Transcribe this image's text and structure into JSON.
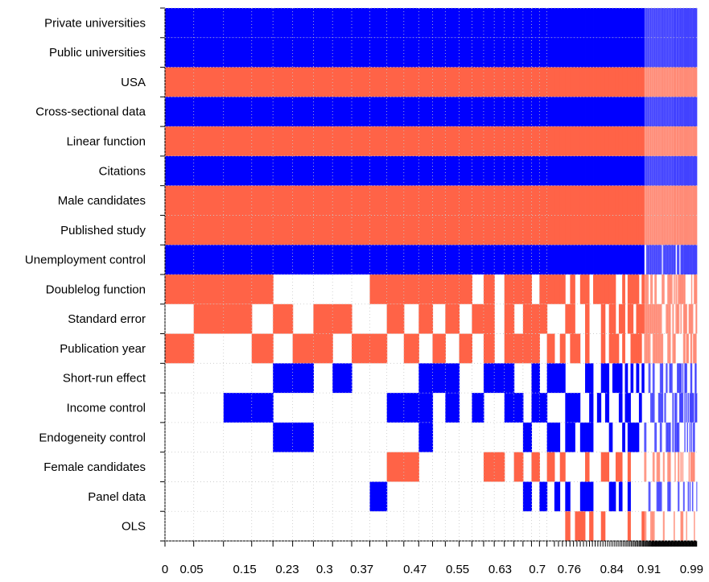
{
  "chart_data": {
    "type": "heatmap",
    "description_free": true,
    "colors": {
      "positive": "#0000ff",
      "negative": "#ff6347",
      "empty": "#ffffff"
    },
    "rows": [
      "Private universities",
      "Public universities",
      "USA",
      "Cross-sectional data",
      "Linear function",
      "Citations",
      "Male candidates",
      "Published study",
      "Unemployment control",
      "Doublelog function",
      "Standard error",
      "Publication year",
      "Short-run effect",
      "Income control",
      "Endogeneity control",
      "Female candidates",
      "Panel data",
      "OLS"
    ],
    "x_ticks": [
      "0",
      "0.05",
      "0.15",
      "0.23",
      "0.3",
      "0.37",
      "0.47",
      "0.55",
      "0.63",
      "0.7",
      "0.76",
      "0.84",
      "0.91",
      "0.99"
    ],
    "x_range": [
      0,
      1
    ],
    "models": [
      {
        "w": 0.054,
        "v": [
          "B",
          "B",
          "R",
          "B",
          "R",
          "B",
          "R",
          "R",
          "B",
          "R",
          "",
          "R",
          "",
          "",
          "",
          "",
          "",
          ""
        ]
      },
      {
        "w": 0.056,
        "v": [
          "B",
          "B",
          "R",
          "B",
          "R",
          "B",
          "R",
          "R",
          "B",
          "R",
          "R",
          "",
          "",
          "",
          "",
          "",
          "",
          ""
        ]
      },
      {
        "w": 0.053,
        "v": [
          "B",
          "B",
          "R",
          "B",
          "R",
          "B",
          "R",
          "R",
          "B",
          "R",
          "R",
          "",
          "",
          "B",
          "",
          "",
          "",
          ""
        ]
      },
      {
        "w": 0.04,
        "v": [
          "B",
          "B",
          "R",
          "B",
          "R",
          "B",
          "R",
          "R",
          "B",
          "R",
          "",
          "R",
          "",
          "B",
          "",
          "",
          "",
          ""
        ]
      },
      {
        "w": 0.037,
        "v": [
          "B",
          "B",
          "R",
          "B",
          "R",
          "B",
          "R",
          "R",
          "B",
          "",
          "R",
          "",
          "B",
          "",
          "B",
          "",
          "",
          ""
        ]
      },
      {
        "w": 0.039,
        "v": [
          "B",
          "B",
          "R",
          "B",
          "R",
          "B",
          "R",
          "R",
          "B",
          "",
          "",
          "R",
          "B",
          "",
          "B",
          "",
          "",
          ""
        ]
      },
      {
        "w": 0.036,
        "v": [
          "B",
          "B",
          "R",
          "B",
          "R",
          "B",
          "R",
          "R",
          "B",
          "",
          "R",
          "R",
          "",
          "",
          "",
          "",
          "",
          ""
        ]
      },
      {
        "w": 0.036,
        "v": [
          "B",
          "B",
          "R",
          "B",
          "R",
          "B",
          "R",
          "R",
          "B",
          "",
          "R",
          "",
          "B",
          "",
          "",
          "",
          "",
          ""
        ]
      },
      {
        "w": 0.034,
        "v": [
          "B",
          "B",
          "R",
          "B",
          "R",
          "B",
          "R",
          "R",
          "B",
          "",
          "",
          "R",
          "",
          "",
          "",
          "",
          "",
          ""
        ]
      },
      {
        "w": 0.032,
        "v": [
          "B",
          "B",
          "R",
          "B",
          "R",
          "B",
          "R",
          "R",
          "B",
          "R",
          "",
          "R",
          "",
          "",
          "",
          "",
          "B",
          ""
        ]
      },
      {
        "w": 0.032,
        "v": [
          "B",
          "B",
          "R",
          "B",
          "R",
          "B",
          "R",
          "R",
          "B",
          "R",
          "R",
          "",
          "",
          "B",
          "",
          "R",
          "",
          ""
        ]
      },
      {
        "w": 0.028,
        "v": [
          "B",
          "B",
          "R",
          "B",
          "R",
          "B",
          "R",
          "R",
          "B",
          "R",
          "",
          "R",
          "",
          "B",
          "",
          "R",
          "",
          ""
        ]
      },
      {
        "w": 0.026,
        "v": [
          "B",
          "B",
          "R",
          "B",
          "R",
          "B",
          "R",
          "R",
          "B",
          "R",
          "R",
          "",
          "B",
          "B",
          "B",
          "",
          "",
          ""
        ]
      },
      {
        "w": 0.024,
        "v": [
          "B",
          "B",
          "R",
          "B",
          "R",
          "B",
          "R",
          "R",
          "B",
          "R",
          "",
          "R",
          "B",
          "",
          "",
          "",
          "",
          ""
        ]
      },
      {
        "w": 0.026,
        "v": [
          "B",
          "B",
          "R",
          "B",
          "R",
          "B",
          "R",
          "R",
          "B",
          "R",
          "R",
          "",
          "B",
          "B",
          "",
          "",
          "",
          ""
        ]
      },
      {
        "w": 0.024,
        "v": [
          "B",
          "B",
          "R",
          "B",
          "R",
          "B",
          "R",
          "R",
          "B",
          "R",
          "",
          "R",
          "",
          "",
          "",
          "",
          "",
          ""
        ]
      },
      {
        "w": 0.022,
        "v": [
          "B",
          "B",
          "R",
          "B",
          "R",
          "B",
          "R",
          "R",
          "B",
          "",
          "R",
          "",
          "",
          "B",
          "",
          "",
          "",
          ""
        ]
      },
      {
        "w": 0.02,
        "v": [
          "B",
          "B",
          "R",
          "B",
          "R",
          "B",
          "R",
          "R",
          "B",
          "R",
          "R",
          "R",
          "B",
          "",
          "",
          "R",
          "",
          ""
        ]
      },
      {
        "w": 0.019,
        "v": [
          "B",
          "B",
          "R",
          "B",
          "R",
          "B",
          "R",
          "R",
          "B",
          "",
          "",
          "",
          "B",
          "",
          "",
          "R",
          "",
          ""
        ]
      },
      {
        "w": 0.018,
        "v": [
          "B",
          "B",
          "R",
          "B",
          "R",
          "B",
          "R",
          "R",
          "B",
          "R",
          "R",
          "R",
          "B",
          "B",
          "",
          "",
          "",
          ""
        ]
      },
      {
        "w": 0.017,
        "v": [
          "B",
          "B",
          "R",
          "B",
          "R",
          "B",
          "R",
          "R",
          "B",
          "R",
          "",
          "R",
          "",
          "B",
          "",
          "R",
          "",
          ""
        ]
      },
      {
        "w": 0.016,
        "v": [
          "B",
          "B",
          "R",
          "B",
          "R",
          "B",
          "R",
          "R",
          "B",
          "R",
          "R",
          "R",
          "",
          "",
          "B",
          "",
          "B",
          ""
        ]
      },
      {
        "w": 0.015,
        "v": [
          "B",
          "B",
          "R",
          "B",
          "R",
          "B",
          "R",
          "R",
          "B",
          "",
          "R",
          "R",
          "B",
          "B",
          "",
          "R",
          "",
          ""
        ]
      },
      {
        "w": 0.014,
        "v": [
          "B",
          "B",
          "R",
          "B",
          "R",
          "B",
          "R",
          "R",
          "B",
          "R",
          "R",
          "",
          "",
          "B",
          "",
          "",
          "B",
          ""
        ]
      },
      {
        "w": 0.014,
        "v": [
          "B",
          "B",
          "R",
          "B",
          "R",
          "B",
          "R",
          "R",
          "B",
          "R",
          "",
          "R",
          "B",
          "",
          "B",
          "R",
          "",
          ""
        ]
      }
    ],
    "tail_start": 0.7,
    "tail_rows_fill": [
      1,
      1,
      1,
      1,
      1,
      1,
      1,
      1,
      0.95,
      0.6,
      0.55,
      0.55,
      0.45,
      0.4,
      0.35,
      0.35,
      0.35,
      0.2
    ],
    "tail_rows_color": [
      "B",
      "B",
      "R",
      "B",
      "R",
      "B",
      "R",
      "R",
      "B",
      "R",
      "R",
      "R",
      "B",
      "B",
      "B",
      "R",
      "B",
      "R"
    ]
  }
}
